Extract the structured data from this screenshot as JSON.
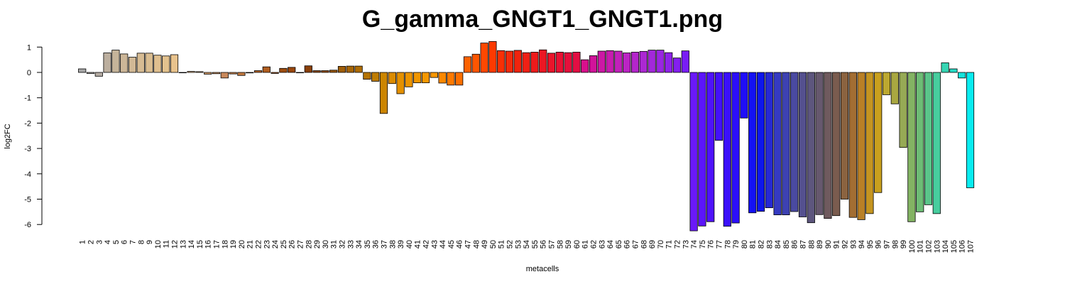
{
  "chart_data": {
    "type": "bar",
    "title": "G_gamma_GNGT1_GNGT1.png",
    "xlabel": "metacells",
    "ylabel": "log2FC",
    "ylim": [
      -6,
      1
    ],
    "yticks": [
      1,
      0,
      -1,
      -2,
      -3,
      -4,
      -5,
      -6
    ],
    "grid": false,
    "legend": "none",
    "categories": [
      "1",
      "2",
      "3",
      "4",
      "5",
      "6",
      "7",
      "8",
      "9",
      "10",
      "11",
      "12",
      "13",
      "14",
      "15",
      "16",
      "17",
      "18",
      "19",
      "20",
      "21",
      "22",
      "23",
      "24",
      "25",
      "26",
      "27",
      "28",
      "29",
      "30",
      "31",
      "32",
      "33",
      "34",
      "35",
      "36",
      "37",
      "38",
      "39",
      "40",
      "41",
      "42",
      "43",
      "44",
      "45",
      "46",
      "47",
      "48",
      "49",
      "50",
      "51",
      "52",
      "53",
      "54",
      "55",
      "56",
      "57",
      "58",
      "59",
      "60",
      "61",
      "62",
      "63",
      "64",
      "65",
      "66",
      "67",
      "68",
      "69",
      "70",
      "71",
      "72",
      "73",
      "74",
      "75",
      "76",
      "77",
      "78",
      "79",
      "80",
      "81",
      "82",
      "83",
      "84",
      "85",
      "86",
      "87",
      "88",
      "89",
      "90",
      "91",
      "92",
      "93",
      "94",
      "95",
      "96",
      "97",
      "98",
      "99",
      "100",
      "101",
      "102",
      "103",
      "104",
      "105",
      "106",
      "107"
    ],
    "values": [
      0.14,
      -0.04,
      -0.15,
      0.77,
      0.88,
      0.73,
      0.6,
      0.76,
      0.76,
      0.68,
      0.65,
      0.7,
      0.0,
      0.04,
      0.03,
      -0.07,
      -0.05,
      -0.22,
      -0.06,
      -0.12,
      -0.02,
      0.07,
      0.22,
      -0.04,
      0.16,
      0.2,
      0.0,
      0.26,
      0.07,
      0.07,
      0.09,
      0.24,
      0.25,
      0.25,
      -0.27,
      -0.35,
      -1.62,
      -0.44,
      -0.84,
      -0.57,
      -0.41,
      -0.41,
      -0.2,
      -0.42,
      -0.5,
      -0.5,
      0.62,
      0.72,
      1.16,
      1.22,
      0.86,
      0.84,
      0.87,
      0.78,
      0.8,
      0.89,
      0.76,
      0.8,
      0.78,
      0.8,
      0.5,
      0.66,
      0.84,
      0.86,
      0.84,
      0.77,
      0.8,
      0.83,
      0.88,
      0.88,
      0.78,
      0.57,
      0.85,
      -6.25,
      -6.06,
      -5.89,
      -2.68,
      -6.07,
      -5.94,
      -1.8,
      -5.54,
      -5.48,
      -5.34,
      -5.62,
      -5.62,
      -5.49,
      -5.7,
      -5.93,
      -5.61,
      -5.76,
      -5.65,
      -5.0,
      -5.72,
      -5.81,
      -5.57,
      -4.74,
      -0.88,
      -1.24,
      -2.96,
      -5.89,
      -5.5,
      -5.22,
      -5.57,
      0.38,
      0.14,
      -0.22,
      -4.55
    ],
    "colors": [
      "#a7a7a7",
      "#afa9a4",
      "#b4aba3",
      "#bcaf9f",
      "#c5b49a",
      "#ccb698",
      "#d1b895",
      "#d6bb93",
      "#dabd91",
      "#dfbf8f",
      "#e3c28e",
      "#e9c38d",
      "#efc78b",
      "#e0b27d",
      "#d7a672",
      "#d19b69",
      "#cc9262",
      "#c9895c",
      "#c6824f",
      "#c2793f",
      "#bd6e2e",
      "#b96628",
      "#b05e20",
      "#a85518",
      "#a04e10",
      "#99470d",
      "#8f420b",
      "#8a4009",
      "#8c4a09",
      "#934f0a",
      "#995609",
      "#a05e08",
      "#a76506",
      "#ae6c05",
      "#b57404",
      "#be7c02",
      "#cc8500",
      "#db8b00",
      "#e49000",
      "#ec9400",
      "#f09600",
      "#f59800",
      "#f79700",
      "#fb8800",
      "#fd7a00",
      "#fd6f00",
      "#fd6200",
      "#fd5600",
      "#fd4800",
      "#fc3a00",
      "#f83005",
      "#f42a0a",
      "#f0240e",
      "#ef2015",
      "#ed1b1b",
      "#ec1723",
      "#ea142b",
      "#e81133",
      "#e60f3b",
      "#e30e43",
      "#d9108c",
      "#d1139a",
      "#cc18a5",
      "#c71cb0",
      "#c220bb",
      "#bb24c4",
      "#b426cb",
      "#ac28d3",
      "#a328da",
      "#9a26e2",
      "#8f22e9",
      "#8420ef",
      "#781df4",
      "#6a19f8",
      "#5c15fa",
      "#4f12fb",
      "#4411fb",
      "#3b10fb",
      "#2c0ffa",
      "#1f0ef8",
      "#1411f3",
      "#0e16ec",
      "#2629d4",
      "#353ac2",
      "#3d41b2",
      "#4a4aa1",
      "#54508f",
      "#5d567e",
      "#66586e",
      "#6f5a5e",
      "#7a5c4f",
      "#8b6340",
      "#a36e33",
      "#b98026",
      "#c59520",
      "#c9a01e",
      "#bca830",
      "#a9a741",
      "#97aa55",
      "#83b363",
      "#6dbc75",
      "#5ac58a",
      "#47cd9e",
      "#35d5b2",
      "#26dcc6",
      "#15e3dc",
      "#08ecf0"
    ]
  }
}
